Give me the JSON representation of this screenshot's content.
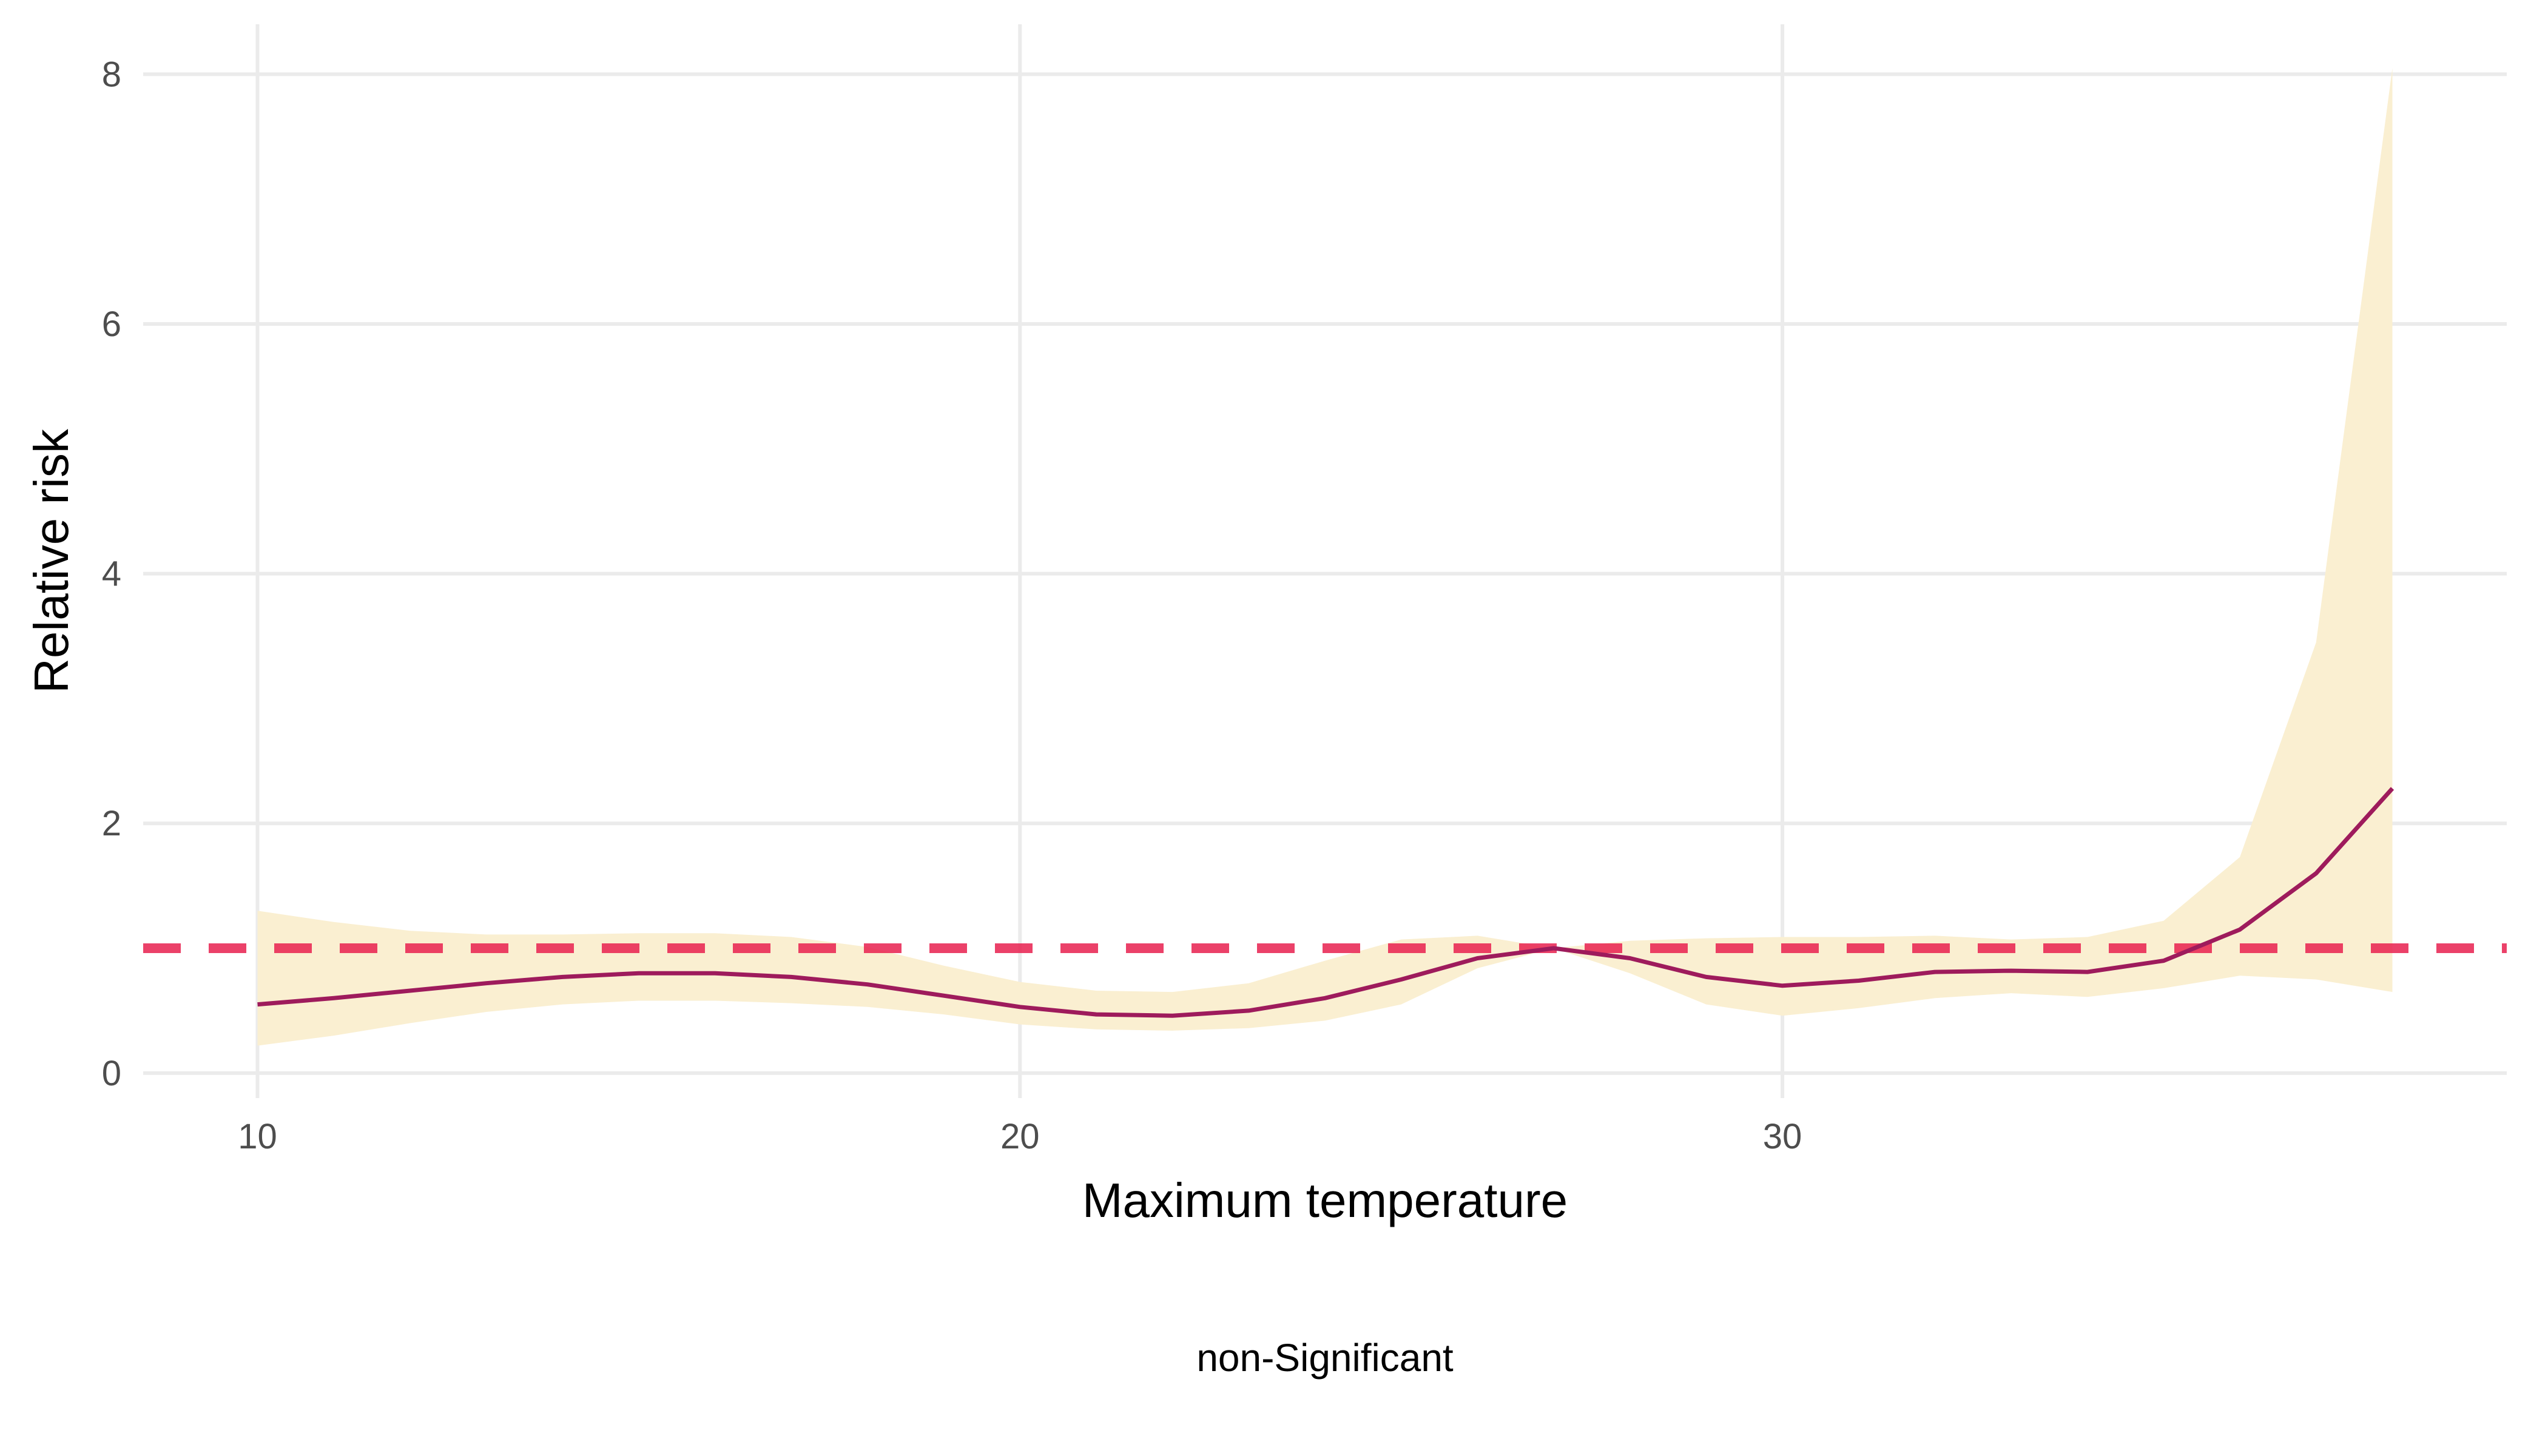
{
  "chart_data": {
    "type": "line",
    "title": "",
    "xlabel": "Maximum temperature",
    "ylabel": "Relative risk",
    "xlim": [
      8.5,
      39.5
    ],
    "ylim": [
      -0.2,
      8.4
    ],
    "x_ticks": [
      10,
      20,
      30
    ],
    "y_ticks": [
      0,
      2,
      4,
      6,
      8
    ],
    "grid": true,
    "reference_line": {
      "y": 1,
      "style": "dashed",
      "color": "#e8204f"
    },
    "series": [
      {
        "x": [
          10,
          11,
          12,
          13,
          14,
          15,
          16,
          17,
          18,
          19,
          20,
          21,
          22,
          23,
          24,
          25,
          26,
          27,
          28,
          29,
          30,
          31,
          32,
          33,
          34,
          35,
          36,
          37,
          38
        ],
        "values": [
          0.55,
          0.6,
          0.66,
          0.72,
          0.77,
          0.8,
          0.8,
          0.77,
          0.71,
          0.62,
          0.53,
          0.47,
          0.46,
          0.5,
          0.6,
          0.75,
          0.92,
          1.0,
          0.92,
          0.77,
          0.7,
          0.74,
          0.81,
          0.82,
          0.81,
          0.9,
          1.15,
          1.6,
          2.28
        ],
        "lower": [
          0.22,
          0.3,
          0.4,
          0.49,
          0.55,
          0.58,
          0.58,
          0.56,
          0.53,
          0.47,
          0.39,
          0.35,
          0.34,
          0.36,
          0.42,
          0.55,
          0.84,
          1.0,
          0.8,
          0.55,
          0.46,
          0.52,
          0.6,
          0.64,
          0.61,
          0.68,
          0.78,
          0.75,
          0.65
        ],
        "upper": [
          1.3,
          1.21,
          1.14,
          1.11,
          1.11,
          1.12,
          1.12,
          1.09,
          1.01,
          0.86,
          0.73,
          0.66,
          0.65,
          0.72,
          0.9,
          1.07,
          1.1,
          1.0,
          1.06,
          1.08,
          1.09,
          1.09,
          1.1,
          1.07,
          1.09,
          1.22,
          1.73,
          3.45,
          8.05
        ],
        "color": "#9e1b5c",
        "band_color": "#faefd1"
      }
    ],
    "caption": "non-Significant"
  }
}
